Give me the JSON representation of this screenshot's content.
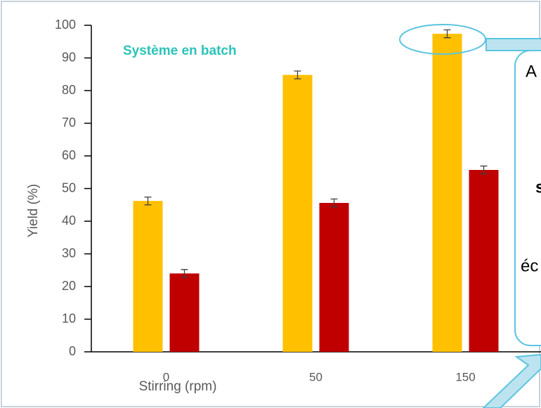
{
  "chart_data": {
    "type": "bar",
    "annotation": "Système en batch",
    "callout_texts": [
      "A",
      "s",
      "éc"
    ],
    "xlabel": "Stirring (rpm)",
    "ylabel": "Yield (%)",
    "categories": [
      "0",
      "50",
      "150"
    ],
    "series": [
      {
        "color": "#ffc000",
        "values": [
          46.2,
          84.8,
          97.4
        ],
        "errors": [
          1.2,
          1.2,
          1.2
        ]
      },
      {
        "color": "#c00000",
        "values": [
          24.0,
          45.6,
          55.7
        ],
        "errors": [
          1.2,
          1.2,
          1.2
        ]
      }
    ],
    "ylim": [
      0,
      100
    ],
    "yticks": [
      0,
      10,
      20,
      30,
      40,
      50,
      60,
      70,
      80,
      90,
      100
    ],
    "grid": false
  }
}
